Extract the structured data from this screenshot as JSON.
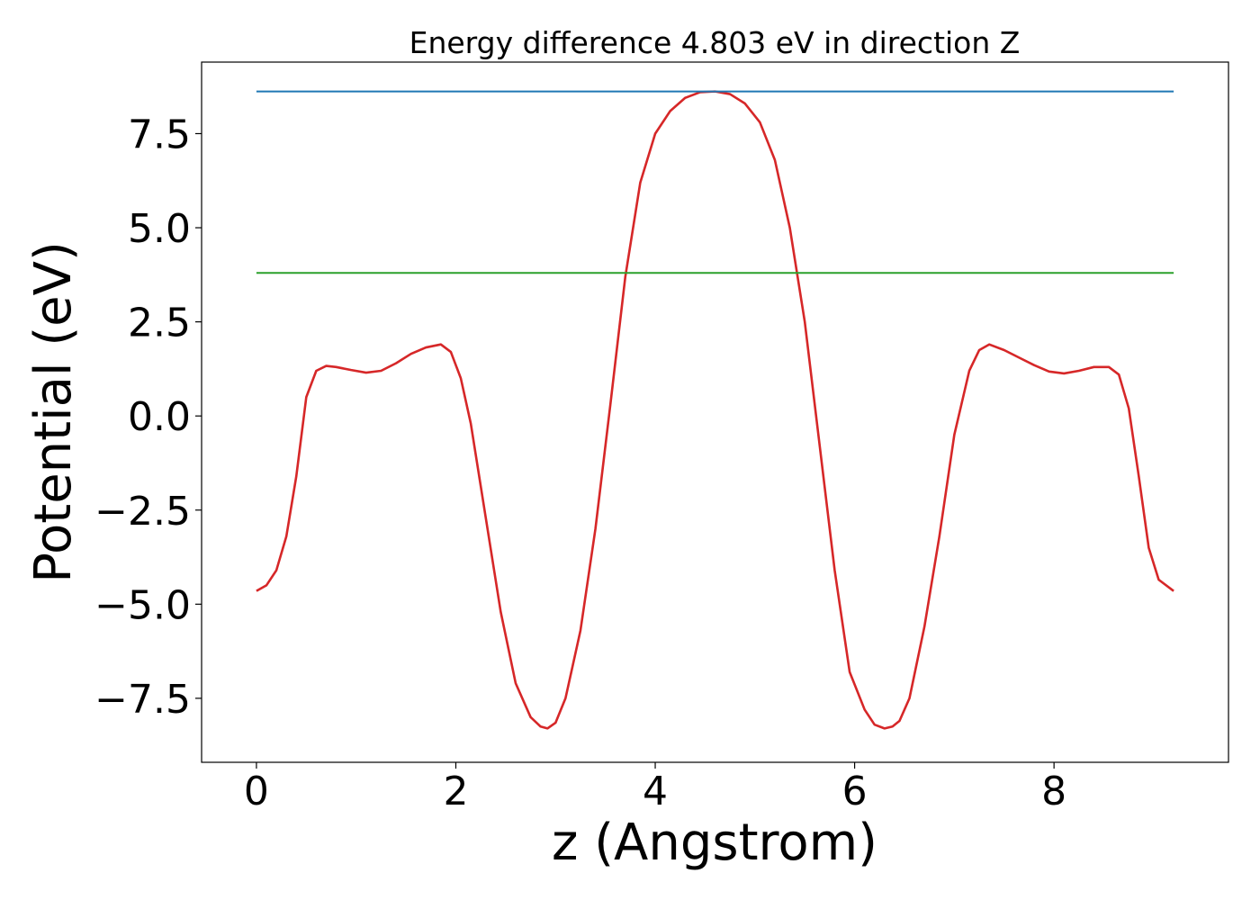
{
  "chart_data": {
    "type": "line",
    "title": "Energy difference 4.803 eV in direction Z",
    "xlabel": "z (Angstrom)",
    "ylabel": "Potential (eV)",
    "xlim": [
      -0.55,
      9.75
    ],
    "ylim": [
      -9.2,
      9.4
    ],
    "xticks": [
      0,
      2,
      4,
      6,
      8
    ],
    "xtick_labels": [
      "0",
      "2",
      "4",
      "6",
      "8"
    ],
    "yticks": [
      -7.5,
      -5.0,
      -2.5,
      0.0,
      2.5,
      5.0,
      7.5
    ],
    "ytick_labels": [
      "−7.5",
      "−5.0",
      "−2.5",
      "0.0",
      "2.5",
      "5.0",
      "7.5"
    ],
    "grid": false,
    "series": [
      {
        "color": "#d62728",
        "x": [
          0.0,
          0.1,
          0.2,
          0.3,
          0.4,
          0.5,
          0.6,
          0.7,
          0.8,
          0.95,
          1.1,
          1.25,
          1.4,
          1.55,
          1.7,
          1.85,
          1.95,
          2.05,
          2.15,
          2.3,
          2.45,
          2.6,
          2.75,
          2.85,
          2.92,
          3.0,
          3.1,
          3.25,
          3.4,
          3.55,
          3.7,
          3.85,
          4.0,
          4.15,
          4.3,
          4.45,
          4.6,
          4.75,
          4.9,
          5.05,
          5.2,
          5.35,
          5.5,
          5.65,
          5.8,
          5.95,
          6.1,
          6.2,
          6.3,
          6.38,
          6.45,
          6.55,
          6.7,
          6.85,
          7.0,
          7.15,
          7.25,
          7.35,
          7.5,
          7.65,
          7.8,
          7.95,
          8.1,
          8.25,
          8.4,
          8.55,
          8.65,
          8.75,
          8.85,
          8.95,
          9.05,
          9.2
        ],
        "y": [
          -4.65,
          -4.5,
          -4.1,
          -3.2,
          -1.6,
          0.5,
          1.2,
          1.33,
          1.3,
          1.22,
          1.15,
          1.2,
          1.4,
          1.65,
          1.82,
          1.9,
          1.7,
          1.0,
          -0.2,
          -2.7,
          -5.2,
          -7.1,
          -8.0,
          -8.25,
          -8.3,
          -8.15,
          -7.5,
          -5.7,
          -3.0,
          0.3,
          3.7,
          6.2,
          7.5,
          8.1,
          8.45,
          8.6,
          8.62,
          8.55,
          8.3,
          7.8,
          6.8,
          5.0,
          2.5,
          -0.8,
          -4.1,
          -6.8,
          -7.8,
          -8.2,
          -8.3,
          -8.25,
          -8.1,
          -7.5,
          -5.6,
          -3.2,
          -0.5,
          1.2,
          1.75,
          1.9,
          1.75,
          1.55,
          1.35,
          1.18,
          1.13,
          1.2,
          1.3,
          1.3,
          1.1,
          0.2,
          -1.6,
          -3.5,
          -4.35,
          -4.65
        ]
      },
      {
        "color": "#1f77b4",
        "x": [
          0.0,
          9.2
        ],
        "y": [
          8.62,
          8.62
        ]
      },
      {
        "color": "#2ca02c",
        "x": [
          0.0,
          9.2
        ],
        "y": [
          3.8,
          3.8
        ]
      }
    ]
  }
}
